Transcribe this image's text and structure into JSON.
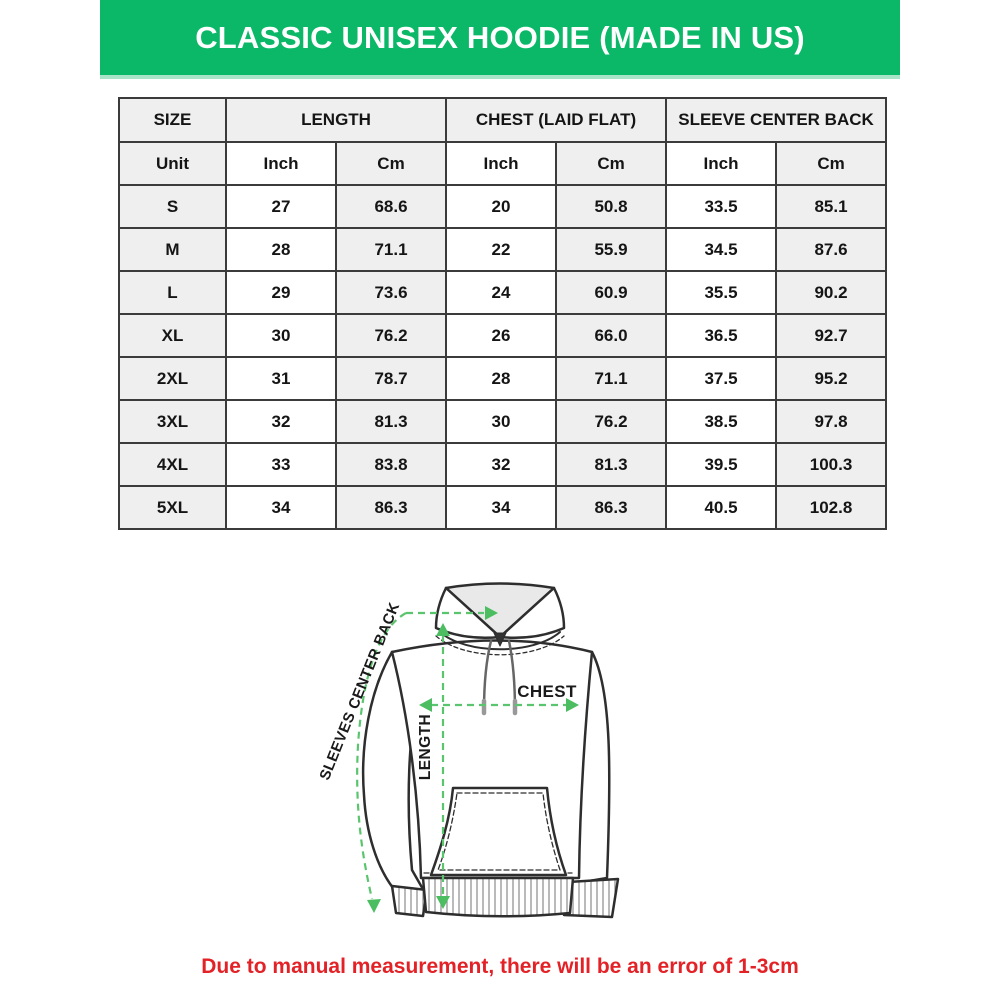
{
  "title": "CLASSIC UNISEX HOODIE (MADE IN US)",
  "colors": {
    "banner_green": "#0bb868",
    "banner_edge_light_green": "#a9e4c9",
    "cell_gray": "#efefef",
    "table_border": "#3b3b3b",
    "arrow_green": "#5bc46e",
    "note_red": "#e32227"
  },
  "table": {
    "group_headers": [
      {
        "label": "SIZE"
      },
      {
        "label": "LENGTH"
      },
      {
        "label": "CHEST (LAID FLAT)"
      },
      {
        "label": "SLEEVE CENTER BACK"
      }
    ],
    "unit_row": [
      "Unit",
      "Inch",
      "Cm",
      "Inch",
      "Cm",
      "Inch",
      "Cm"
    ],
    "rows": [
      {
        "size": "S",
        "values": [
          "27",
          "68.6",
          "20",
          "50.8",
          "33.5",
          "85.1"
        ]
      },
      {
        "size": "M",
        "values": [
          "28",
          "71.1",
          "22",
          "55.9",
          "34.5",
          "87.6"
        ]
      },
      {
        "size": "L",
        "values": [
          "29",
          "73.6",
          "24",
          "60.9",
          "35.5",
          "90.2"
        ]
      },
      {
        "size": "XL",
        "values": [
          "30",
          "76.2",
          "26",
          "66.0",
          "36.5",
          "92.7"
        ]
      },
      {
        "size": "2XL",
        "values": [
          "31",
          "78.7",
          "28",
          "71.1",
          "37.5",
          "95.2"
        ]
      },
      {
        "size": "3XL",
        "values": [
          "32",
          "81.3",
          "30",
          "76.2",
          "38.5",
          "97.8"
        ]
      },
      {
        "size": "4XL",
        "values": [
          "33",
          "83.8",
          "32",
          "81.3",
          "39.5",
          "100.3"
        ]
      },
      {
        "size": "5XL",
        "values": [
          "34",
          "86.3",
          "34",
          "86.3",
          "40.5",
          "102.8"
        ]
      }
    ]
  },
  "chart_data": {
    "type": "table",
    "title": "CLASSIC UNISEX HOODIE (MADE IN US)",
    "columns": [
      "Size",
      "Length Inch",
      "Length Cm",
      "Chest (Laid Flat) Inch",
      "Chest (Laid Flat) Cm",
      "Sleeve Center Back Inch",
      "Sleeve Center Back Cm"
    ],
    "rows": [
      [
        "S",
        27,
        68.6,
        20,
        50.8,
        33.5,
        85.1
      ],
      [
        "M",
        28,
        71.1,
        22,
        55.9,
        34.5,
        87.6
      ],
      [
        "L",
        29,
        73.6,
        24,
        60.9,
        35.5,
        90.2
      ],
      [
        "XL",
        30,
        76.2,
        26,
        66.0,
        36.5,
        92.7
      ],
      [
        "2XL",
        31,
        78.7,
        28,
        71.1,
        37.5,
        95.2
      ],
      [
        "3XL",
        32,
        81.3,
        30,
        76.2,
        38.5,
        97.8
      ],
      [
        "4XL",
        33,
        83.8,
        32,
        81.3,
        39.5,
        100.3
      ],
      [
        "5XL",
        34,
        86.3,
        34,
        86.3,
        40.5,
        102.8
      ]
    ]
  },
  "diagram": {
    "labels": {
      "sleeve": "SLEEVES CENTER BACK",
      "chest": "CHEST",
      "length": "LENGTH"
    }
  },
  "footer": {
    "note": "Due to manual measurement, there will be an error of 1-3cm"
  }
}
